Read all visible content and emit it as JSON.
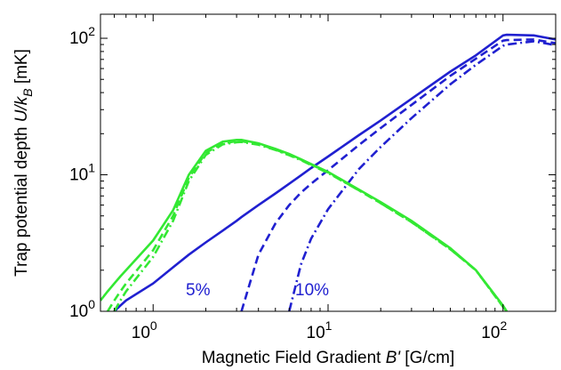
{
  "chart_data": {
    "type": "line",
    "xlabel": [
      "Magnetic Field Gradient  ",
      "B'",
      " [G/cm]"
    ],
    "ylabel": [
      "Trap potential depth  ",
      "U/k",
      "B",
      " [mK]"
    ],
    "log_x": true,
    "log_y": true,
    "xlim": [
      0.5,
      200
    ],
    "ylim": [
      1,
      150
    ],
    "xticks": [
      {
        "value": 1,
        "label": "10^0"
      },
      {
        "value": 10,
        "label": "10^1"
      },
      {
        "value": 100,
        "label": "10^2"
      }
    ],
    "yticks": [
      {
        "value": 1,
        "label": "10^0"
      },
      {
        "value": 10,
        "label": "10^1"
      },
      {
        "value": 100,
        "label": "10^2"
      }
    ],
    "annotations": [
      "5%",
      "10%"
    ],
    "x": [
      0.5,
      0.55,
      0.6,
      0.65,
      0.7,
      1,
      1.3,
      1.6,
      2,
      2.5,
      3,
      3.2,
      4,
      5,
      6,
      7,
      8,
      10,
      15,
      20,
      30,
      50,
      70,
      100,
      105,
      150,
      200
    ],
    "series": [
      {
        "color": "#2020d0",
        "dash": "solid",
        "values": [
          null,
          null,
          1.0,
          1.1,
          1.2,
          1.6,
          2.1,
          2.6,
          3.2,
          3.9,
          4.6,
          4.9,
          6,
          7.3,
          8.6,
          9.9,
          11.2,
          13.6,
          19.5,
          25,
          36,
          57,
          75,
          105,
          106,
          105,
          98
        ]
      },
      {
        "color": "#2020d0",
        "dash": "dashed",
        "values": [
          null,
          null,
          null,
          null,
          null,
          null,
          null,
          null,
          null,
          null,
          null,
          1.0,
          2.6,
          4.4,
          6,
          7.4,
          8.6,
          10.8,
          16.5,
          22,
          32.5,
          53,
          71,
          96,
          97,
          98,
          92
        ]
      },
      {
        "color": "#2020d0",
        "dash": "dashdot",
        "values": [
          null,
          null,
          null,
          null,
          null,
          null,
          null,
          null,
          null,
          null,
          null,
          null,
          null,
          null,
          1.0,
          2.2,
          3.4,
          5.6,
          11,
          16,
          26,
          46,
          64,
          88,
          90,
          95,
          89
        ]
      },
      {
        "color": "#33e833",
        "dash": "solid",
        "values": [
          1.2,
          1.4,
          1.6,
          1.8,
          2.0,
          3.3,
          5.5,
          10,
          15,
          17.5,
          18,
          18,
          17,
          15.5,
          14.2,
          13,
          12,
          10.5,
          7.8,
          6.3,
          4.6,
          2.9,
          2.0,
          1.1,
          1.0,
          null,
          null
        ]
      },
      {
        "color": "#33e833",
        "dash": "dashed",
        "values": [
          null,
          1.0,
          1.2,
          1.4,
          1.6,
          2.8,
          5,
          9.5,
          14.5,
          17,
          17.6,
          17.6,
          16.8,
          15.3,
          14,
          12.9,
          11.9,
          10.4,
          7.7,
          6.2,
          4.5,
          2.85,
          2.0,
          1.08,
          1.0,
          null,
          null
        ]
      },
      {
        "color": "#33e833",
        "dash": "dashdot",
        "values": [
          null,
          null,
          1.0,
          1.2,
          1.4,
          2.5,
          4.6,
          9,
          14,
          16.7,
          17.3,
          17.4,
          16.6,
          15.2,
          13.9,
          12.8,
          11.8,
          10.3,
          7.7,
          6.2,
          4.5,
          2.85,
          2.0,
          1.08,
          1.0,
          null,
          null
        ]
      }
    ]
  }
}
